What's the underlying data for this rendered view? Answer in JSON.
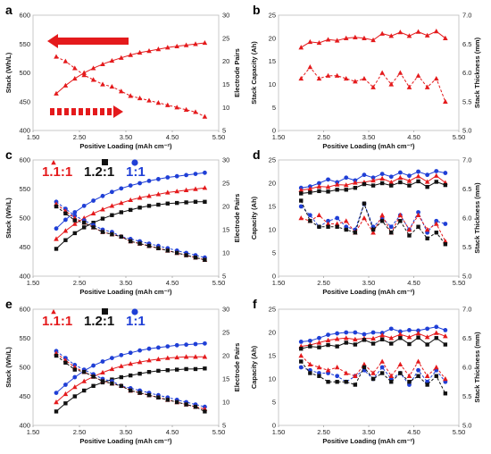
{
  "figure": {
    "colors": {
      "red": "#e41a1c",
      "black": "#111111",
      "blue": "#1f3fd6"
    },
    "legend": {
      "red_label": "1.1:1",
      "black_label": "1.2:1",
      "blue_label": "1:1"
    }
  },
  "chart_data": [
    {
      "panel": "a",
      "type": "line",
      "xlabel": "Positive Loading (mAh cm⁻²)",
      "ylabel": "Stack (Wh/L)",
      "y2label": "Electrode Pairs",
      "xlim": [
        1.5,
        5.5
      ],
      "ylim": [
        400,
        600
      ],
      "y2lim": [
        5,
        30
      ],
      "xticks": [
        "1.50",
        "2.50",
        "3.50",
        "4.50",
        "5.50"
      ],
      "yticks": [
        "400",
        "450",
        "500",
        "550",
        "600"
      ],
      "y2ticks": [
        "5",
        "10",
        "15",
        "20",
        "25",
        "30"
      ],
      "x": [
        2.0,
        2.2,
        2.4,
        2.6,
        2.8,
        3.0,
        3.2,
        3.4,
        3.6,
        3.8,
        4.0,
        4.2,
        4.4,
        4.6,
        4.8,
        5.0,
        5.2
      ],
      "series": [
        {
          "color": "red",
          "axis": "left",
          "marker": "triangle",
          "dash": false,
          "values": [
            464,
            478,
            490,
            500,
            508,
            515,
            521,
            526,
            531,
            535,
            538,
            541,
            544,
            546,
            548,
            550,
            552
          ]
        },
        {
          "color": "red",
          "axis": "right",
          "marker": "triangle",
          "dash": true,
          "values": [
            21,
            20,
            18.5,
            17,
            16,
            15,
            14.5,
            13.5,
            12.5,
            12,
            11.5,
            11,
            10.5,
            10,
            9.5,
            9,
            8
          ]
        }
      ],
      "annotations": [
        "arrow-left-solid",
        "arrow-right-dashed"
      ]
    },
    {
      "panel": "b",
      "type": "line",
      "xlabel": "Positive Loading (mAh cm⁻²)",
      "ylabel": "Stack Capacity (Ah)",
      "y2label": "Stack Thickness (mm)",
      "xlim": [
        1.5,
        5.5
      ],
      "ylim": [
        0,
        25
      ],
      "y2lim": [
        5.0,
        7.0
      ],
      "xticks": [
        "1.50",
        "2.50",
        "3.50",
        "4.50",
        "5.50"
      ],
      "yticks": [
        "0",
        "5",
        "10",
        "15",
        "20",
        "25"
      ],
      "y2ticks": [
        "5.0",
        "5.5",
        "6.0",
        "6.5",
        "7.0"
      ],
      "x": [
        2.0,
        2.2,
        2.4,
        2.6,
        2.8,
        3.0,
        3.2,
        3.4,
        3.6,
        3.8,
        4.0,
        4.2,
        4.4,
        4.6,
        4.8,
        5.0,
        5.2
      ],
      "series": [
        {
          "color": "red",
          "axis": "left",
          "marker": "triangle",
          "dash": false,
          "values": [
            18,
            19.2,
            19,
            19.7,
            19.5,
            20,
            20.2,
            20,
            19.6,
            21,
            20.5,
            21.3,
            20.5,
            21.4,
            20.6,
            21.5,
            20
          ]
        },
        {
          "color": "red",
          "axis": "right",
          "marker": "triangle",
          "dash": true,
          "values": [
            5.9,
            6.1,
            5.9,
            5.95,
            5.95,
            5.9,
            5.85,
            5.9,
            5.75,
            6.0,
            5.8,
            6.0,
            5.75,
            5.95,
            5.75,
            5.9,
            5.5
          ]
        }
      ]
    },
    {
      "panel": "c",
      "type": "line",
      "xlabel": "Positive Loading (mAh cm⁻²)",
      "ylabel": "Stack (Wh/L)",
      "y2label": "Electrode Pairs",
      "xlim": [
        1.5,
        5.5
      ],
      "ylim": [
        400,
        600
      ],
      "y2lim": [
        5,
        30
      ],
      "xticks": [
        "1.50",
        "2.50",
        "3.50",
        "4.50",
        "5.50"
      ],
      "yticks": [
        "400",
        "450",
        "500",
        "550",
        "600"
      ],
      "y2ticks": [
        "5",
        "10",
        "15",
        "20",
        "25",
        "30"
      ],
      "x": [
        2.0,
        2.2,
        2.4,
        2.6,
        2.8,
        3.0,
        3.2,
        3.4,
        3.6,
        3.8,
        4.0,
        4.2,
        4.4,
        4.6,
        4.8,
        5.0,
        5.2
      ],
      "series": [
        {
          "name": "1:1",
          "color": "blue",
          "axis": "left",
          "marker": "circle",
          "dash": false,
          "values": [
            482,
            497,
            510,
            521,
            530,
            538,
            545,
            551,
            556,
            560,
            564,
            567,
            570,
            572,
            574,
            576,
            578
          ]
        },
        {
          "name": "1.1:1",
          "color": "red",
          "axis": "left",
          "marker": "triangle",
          "dash": false,
          "values": [
            464,
            478,
            490,
            500,
            508,
            515,
            521,
            526,
            531,
            535,
            538,
            541,
            544,
            546,
            548,
            550,
            552
          ]
        },
        {
          "name": "1.2:1",
          "color": "black",
          "axis": "left",
          "marker": "square",
          "dash": false,
          "values": [
            447,
            462,
            474,
            484,
            492,
            499,
            505,
            510,
            514,
            518,
            521,
            523,
            525,
            526,
            527,
            528,
            528
          ]
        },
        {
          "color": "blue",
          "axis": "right",
          "marker": "circle",
          "dash": true,
          "values": [
            21,
            19.5,
            18,
            17,
            16,
            15,
            14.5,
            13.5,
            13,
            12.5,
            12,
            11.5,
            11,
            10.5,
            10,
            9.5,
            9
          ]
        },
        {
          "color": "red",
          "axis": "right",
          "marker": "triangle",
          "dash": true,
          "values": [
            20.5,
            19,
            17.5,
            16.5,
            15.5,
            14.5,
            14,
            13.5,
            12.5,
            12,
            11.5,
            11,
            10.5,
            10,
            9.5,
            9,
            8.5
          ]
        },
        {
          "color": "black",
          "axis": "right",
          "marker": "square",
          "dash": true,
          "values": [
            20,
            18.5,
            17,
            16.5,
            15.5,
            14.5,
            14,
            13.5,
            12.5,
            12,
            11.5,
            11,
            10.5,
            10,
            9.5,
            9,
            8.5
          ]
        }
      ]
    },
    {
      "panel": "d",
      "type": "line",
      "xlabel": "Positive Loading (mAh cm⁻²)",
      "ylabel": "Capacity (Ah)",
      "y2label": "Stack Thickness (mm)",
      "xlim": [
        1.5,
        5.5
      ],
      "ylim": [
        0,
        25
      ],
      "y2lim": [
        5.0,
        7.0
      ],
      "xticks": [
        "1.50",
        "2.50",
        "3.50",
        "4.50",
        "5.50"
      ],
      "yticks": [
        "0",
        "5",
        "10",
        "15",
        "20",
        "25"
      ],
      "y2ticks": [
        "5.0",
        "5.5",
        "6.0",
        "6.5",
        "7.0"
      ],
      "x": [
        2.0,
        2.2,
        2.4,
        2.6,
        2.8,
        3.0,
        3.2,
        3.4,
        3.6,
        3.8,
        4.0,
        4.2,
        4.4,
        4.6,
        4.8,
        5.0,
        5.2
      ],
      "series": [
        {
          "name": "1:1",
          "color": "blue",
          "axis": "left",
          "marker": "circle",
          "dash": false,
          "values": [
            19,
            19.3,
            20,
            20.8,
            20.2,
            21.2,
            20.6,
            21.8,
            21.2,
            22,
            21.4,
            22.3,
            21.6,
            22.5,
            21.8,
            22.6,
            22.2
          ]
        },
        {
          "name": "1.1:1",
          "color": "red",
          "axis": "left",
          "marker": "triangle",
          "dash": false,
          "values": [
            18.5,
            18.8,
            19.3,
            19.2,
            19.7,
            19.6,
            20.1,
            20.2,
            20.6,
            21,
            20.2,
            21.2,
            20.5,
            21.5,
            20.3,
            21.6,
            20.1
          ]
        },
        {
          "name": "1.2:1",
          "color": "black",
          "axis": "left",
          "marker": "square",
          "dash": false,
          "values": [
            17.8,
            18,
            18.3,
            18.2,
            18.6,
            18.6,
            19,
            19.8,
            19.5,
            20,
            19.5,
            20.2,
            19.5,
            20.4,
            19.2,
            20.3,
            19.6
          ]
        },
        {
          "color": "blue",
          "axis": "right",
          "marker": "circle",
          "dash": true,
          "values": [
            6.2,
            6.05,
            5.85,
            5.95,
            6.0,
            5.85,
            5.8,
            6.25,
            5.85,
            6.0,
            5.85,
            6.05,
            5.8,
            6.1,
            5.75,
            5.95,
            5.9
          ]
        },
        {
          "color": "red",
          "axis": "right",
          "marker": "triangle",
          "dash": true,
          "values": [
            6.0,
            5.95,
            6.05,
            5.9,
            5.9,
            5.95,
            5.75,
            6.0,
            5.75,
            6.05,
            5.75,
            6.05,
            5.8,
            6.05,
            5.8,
            5.9,
            5.6
          ]
        },
        {
          "color": "black",
          "axis": "right",
          "marker": "square",
          "dash": true,
          "values": [
            6.3,
            5.95,
            5.85,
            5.85,
            5.85,
            5.8,
            5.75,
            6.25,
            5.8,
            5.95,
            5.75,
            5.95,
            5.7,
            5.85,
            5.65,
            5.75,
            5.55
          ]
        }
      ]
    },
    {
      "panel": "e",
      "type": "line",
      "xlabel": "Positive Loading (mAh cm⁻²)",
      "ylabel": "Stack (Wh/L)",
      "y2label": "Electrode Pairs",
      "xlim": [
        1.5,
        5.5
      ],
      "ylim": [
        400,
        600
      ],
      "y2lim": [
        5,
        30
      ],
      "xticks": [
        "1.50",
        "2.50",
        "3.50",
        "4.50",
        "5.50"
      ],
      "yticks": [
        "400",
        "450",
        "500",
        "550",
        "600"
      ],
      "y2ticks": [
        "5",
        "10",
        "15",
        "20",
        "25",
        "30"
      ],
      "x": [
        2.0,
        2.2,
        2.4,
        2.6,
        2.8,
        3.0,
        3.2,
        3.4,
        3.6,
        3.8,
        4.0,
        4.2,
        4.4,
        4.6,
        4.8,
        5.0,
        5.2
      ],
      "series": [
        {
          "name": "1:1",
          "color": "blue",
          "axis": "left",
          "marker": "circle",
          "dash": false,
          "values": [
            456,
            470,
            483,
            494,
            503,
            510,
            516,
            521,
            525,
            529,
            532,
            534,
            536,
            538,
            539,
            540,
            541
          ]
        },
        {
          "name": "1.1:1",
          "color": "red",
          "axis": "left",
          "marker": "triangle",
          "dash": false,
          "values": [
            440,
            454,
            466,
            476,
            484,
            491,
            497,
            502,
            506,
            509,
            512,
            514,
            516,
            517,
            518,
            518,
            518
          ]
        },
        {
          "name": "1.2:1",
          "color": "black",
          "axis": "left",
          "marker": "square",
          "dash": false,
          "values": [
            424,
            438,
            450,
            460,
            468,
            474,
            479,
            483,
            486,
            489,
            492,
            494,
            495,
            496,
            497,
            497,
            498
          ]
        },
        {
          "color": "blue",
          "axis": "right",
          "marker": "circle",
          "dash": true,
          "values": [
            21,
            19.5,
            18,
            17,
            16,
            15,
            14.5,
            13.5,
            13,
            12.5,
            12,
            11.5,
            11,
            10.5,
            10,
            9.5,
            9
          ]
        },
        {
          "color": "red",
          "axis": "right",
          "marker": "triangle",
          "dash": true,
          "values": [
            20.5,
            19,
            17.5,
            16.5,
            15.5,
            14.5,
            14,
            13.5,
            12.5,
            12,
            11.5,
            11,
            10.5,
            10,
            9.5,
            9,
            8.5
          ]
        },
        {
          "color": "black",
          "axis": "right",
          "marker": "square",
          "dash": true,
          "values": [
            20,
            18.5,
            17,
            16.5,
            15.5,
            14.5,
            14,
            13.5,
            12.5,
            12,
            11.5,
            11,
            10.5,
            10,
            9.5,
            9,
            8
          ]
        }
      ]
    },
    {
      "panel": "f",
      "type": "line",
      "xlabel": "Positive Loading (mAh cm⁻²)",
      "ylabel": "Capacity (Ah)",
      "y2label": "Stack Thickness (mm)",
      "xlim": [
        1.5,
        5.5
      ],
      "ylim": [
        0,
        25
      ],
      "y2lim": [
        5.0,
        7.0
      ],
      "xticks": [
        "1.50",
        "2.50",
        "3.50",
        "4.50",
        "5.50"
      ],
      "yticks": [
        "0",
        "5",
        "10",
        "15",
        "20",
        "25"
      ],
      "y2ticks": [
        "5.0",
        "5.5",
        "6.0",
        "6.5",
        "7.0"
      ],
      "x": [
        2.0,
        2.2,
        2.4,
        2.6,
        2.8,
        3.0,
        3.2,
        3.4,
        3.6,
        3.8,
        4.0,
        4.2,
        4.4,
        4.6,
        4.8,
        5.0,
        5.2
      ],
      "series": [
        {
          "name": "1:1",
          "color": "blue",
          "axis": "left",
          "marker": "circle",
          "dash": false,
          "values": [
            18,
            18.2,
            18.8,
            19.5,
            19.8,
            20,
            20,
            19.6,
            20,
            19.9,
            20.8,
            20.2,
            20.5,
            20.4,
            20.8,
            21.2,
            20.5
          ]
        },
        {
          "name": "1.1:1",
          "color": "red",
          "axis": "left",
          "marker": "triangle",
          "dash": false,
          "values": [
            17,
            17.3,
            17.8,
            18.3,
            18.6,
            18.8,
            18.5,
            18.7,
            18.7,
            19.4,
            18.8,
            19.6,
            19,
            19.8,
            19,
            19.9,
            19.2
          ]
        },
        {
          "name": "1.2:1",
          "color": "black",
          "axis": "left",
          "marker": "square",
          "dash": false,
          "values": [
            16.5,
            17,
            16.8,
            17.3,
            17,
            17.8,
            17.4,
            18.4,
            17.6,
            18.5,
            17.6,
            18.8,
            17.5,
            18.9,
            17.4,
            18.8,
            17.4
          ]
        },
        {
          "color": "blue",
          "axis": "right",
          "marker": "circle",
          "dash": true,
          "values": [
            6.0,
            5.95,
            5.9,
            5.9,
            5.85,
            5.75,
            5.85,
            5.95,
            5.8,
            6.0,
            5.8,
            5.9,
            5.7,
            5.95,
            5.75,
            5.95,
            5.75
          ]
        },
        {
          "color": "red",
          "axis": "right",
          "marker": "triangle",
          "dash": true,
          "values": [
            6.2,
            6.05,
            6.0,
            5.95,
            6.0,
            5.9,
            5.85,
            6.05,
            5.9,
            6.1,
            5.85,
            6.05,
            5.85,
            6.1,
            5.85,
            6.0,
            5.8
          ]
        },
        {
          "color": "black",
          "axis": "right",
          "marker": "square",
          "dash": true,
          "values": [
            6.1,
            5.9,
            5.85,
            5.75,
            5.75,
            5.75,
            5.7,
            6.0,
            5.8,
            5.9,
            5.75,
            5.9,
            5.75,
            5.85,
            5.7,
            5.85,
            5.55
          ]
        }
      ]
    }
  ]
}
